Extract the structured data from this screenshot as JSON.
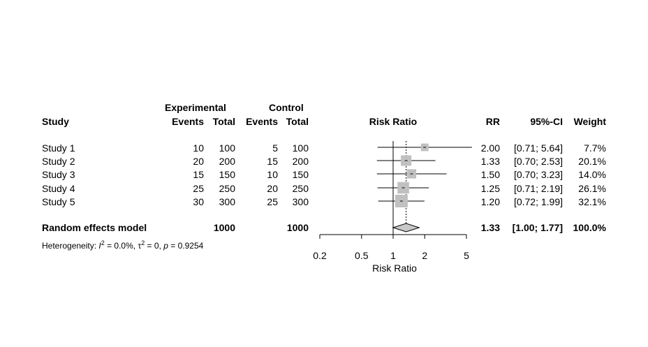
{
  "headers": {
    "experimental": "Experimental",
    "control": "Control",
    "study": "Study",
    "events_exp": "Events",
    "total_exp": "Total",
    "events_ctrl": "Events",
    "total_ctrl": "Total",
    "risk_ratio": "Risk Ratio",
    "rr": "RR",
    "ci": "95%-CI",
    "weight": "Weight"
  },
  "studies": [
    {
      "name": "Study 1",
      "e_events": "10",
      "e_total": "100",
      "c_events": "5",
      "c_total": "100",
      "rr": "2.00",
      "ci": "[0.71; 5.64]",
      "weight": "7.7%"
    },
    {
      "name": "Study 2",
      "e_events": "20",
      "e_total": "200",
      "c_events": "15",
      "c_total": "200",
      "rr": "1.33",
      "ci": "[0.70; 2.53]",
      "weight": "20.1%"
    },
    {
      "name": "Study 3",
      "e_events": "15",
      "e_total": "150",
      "c_events": "10",
      "c_total": "150",
      "rr": "1.50",
      "ci": "[0.70; 3.23]",
      "weight": "14.0%"
    },
    {
      "name": "Study 4",
      "e_events": "25",
      "e_total": "250",
      "c_events": "20",
      "c_total": "250",
      "rr": "1.25",
      "ci": "[0.71; 2.19]",
      "weight": "26.1%"
    },
    {
      "name": "Study 5",
      "e_events": "30",
      "e_total": "300",
      "c_events": "25",
      "c_total": "300",
      "rr": "1.20",
      "ci": "[0.72; 1.99]",
      "weight": "32.1%"
    }
  ],
  "pooled": {
    "label": "Random effects model",
    "e_total": "1000",
    "c_total": "1000",
    "rr": "1.33",
    "ci": "[1.00; 1.77]",
    "weight": "100.0%"
  },
  "heterogeneity": {
    "prefix": "Heterogeneity: ",
    "i2_symbol": "I",
    "i2_sup": "2",
    "i2_value": " = 0.0%, ",
    "tau_symbol": "τ",
    "tau_sup": "2",
    "tau_value": " = 0, ",
    "p_symbol": "p",
    "p_value": " = 0.9254"
  },
  "chart_data": {
    "type": "forest",
    "xlabel": "Risk Ratio",
    "scale": "log",
    "xlim": [
      0.2,
      5
    ],
    "ticks": [
      0.2,
      0.5,
      1,
      2,
      5
    ],
    "tick_labels": [
      "0.2",
      "0.5",
      "1",
      "2",
      "5"
    ],
    "reference_line": 1,
    "pooled_line": 1.33,
    "studies": [
      {
        "name": "Study 1",
        "rr": 2.0,
        "lo": 0.71,
        "hi": 5.64,
        "weight": 7.7
      },
      {
        "name": "Study 2",
        "rr": 1.33,
        "lo": 0.7,
        "hi": 2.53,
        "weight": 20.1
      },
      {
        "name": "Study 3",
        "rr": 1.5,
        "lo": 0.7,
        "hi": 3.23,
        "weight": 14.0
      },
      {
        "name": "Study 4",
        "rr": 1.25,
        "lo": 0.71,
        "hi": 2.19,
        "weight": 26.1
      },
      {
        "name": "Study 5",
        "rr": 1.2,
        "lo": 0.72,
        "hi": 1.99,
        "weight": 32.1
      }
    ],
    "pooled": {
      "rr": 1.33,
      "lo": 1.0,
      "hi": 1.77
    }
  }
}
